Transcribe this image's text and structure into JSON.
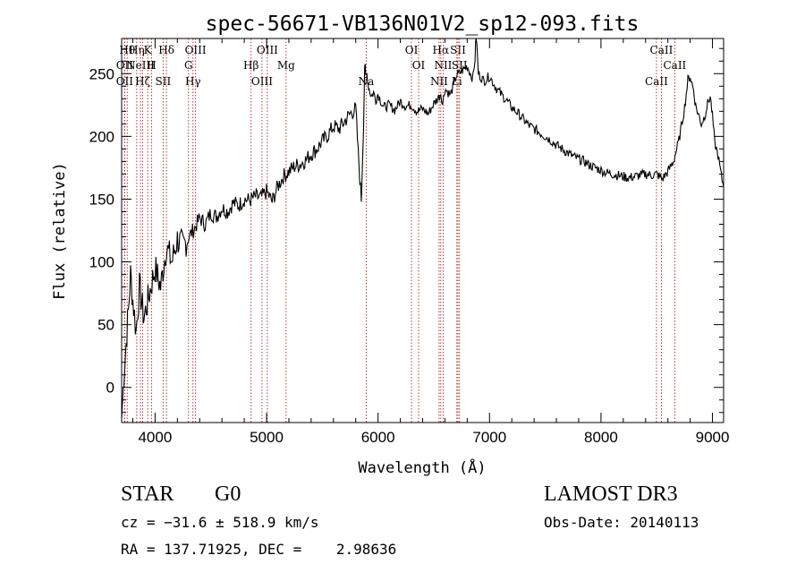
{
  "chart_data": {
    "type": "line",
    "title": "spec-56671-VB136N01V2_sp12-093.fits",
    "xlabel": "Wavelength (Å)",
    "ylabel": "Flux (relative)",
    "xlim": [
      3700,
      9100
    ],
    "ylim": [
      -28,
      278
    ],
    "xticks": [
      4000,
      5000,
      6000,
      7000,
      8000,
      9000
    ],
    "yticks": [
      0,
      50,
      100,
      150,
      200,
      250
    ],
    "series": [
      {
        "name": "flux",
        "x": [
          3700,
          3720,
          3740,
          3760,
          3780,
          3800,
          3830,
          3860,
          3900,
          3950,
          4000,
          4050,
          4100,
          4150,
          4200,
          4250,
          4300,
          4350,
          4400,
          4450,
          4500,
          4550,
          4600,
          4650,
          4700,
          4750,
          4800,
          4850,
          4900,
          4950,
          5000,
          5050,
          5100,
          5150,
          5200,
          5250,
          5300,
          5350,
          5400,
          5450,
          5500,
          5550,
          5600,
          5650,
          5700,
          5750,
          5800,
          5830,
          5850,
          5870,
          5880,
          5890,
          5900,
          5910,
          5920,
          5940,
          5960,
          5980,
          6000,
          6050,
          6100,
          6150,
          6200,
          6250,
          6300,
          6350,
          6400,
          6450,
          6500,
          6550,
          6563,
          6580,
          6600,
          6650,
          6700,
          6750,
          6800,
          6850,
          6870,
          6880,
          6900,
          6950,
          7000,
          7050,
          7100,
          7150,
          7200,
          7250,
          7300,
          7350,
          7400,
          7450,
          7500,
          7550,
          7600,
          7650,
          7700,
          7750,
          7800,
          7850,
          7900,
          7950,
          8000,
          8050,
          8100,
          8150,
          8200,
          8250,
          8300,
          8350,
          8400,
          8450,
          8500,
          8550,
          8600,
          8650,
          8700,
          8750,
          8780,
          8800,
          8830,
          8850,
          8880,
          8900,
          8930,
          8950,
          8980,
          9000,
          9020,
          9050,
          9080,
          9100
        ],
        "y": [
          -25,
          10,
          35,
          60,
          90,
          70,
          45,
          80,
          55,
          75,
          95,
          80,
          112,
          100,
          118,
          112,
          120,
          126,
          135,
          130,
          139,
          136,
          143,
          140,
          147,
          145,
          150,
          149,
          152,
          151,
          156,
          148,
          160,
          168,
          172,
          176,
          178,
          181,
          186,
          190,
          196,
          201,
          208,
          206,
          212,
          218,
          222,
          175,
          150,
          210,
          258,
          245,
          250,
          242,
          238,
          232,
          235,
          229,
          234,
          223,
          225,
          221,
          228,
          224,
          225,
          220,
          222,
          218,
          226,
          232,
          235,
          226,
          238,
          233,
          248,
          252,
          256,
          246,
          262,
          282,
          250,
          244,
          248,
          240,
          234,
          229,
          223,
          219,
          214,
          209,
          206,
          203,
          200,
          197,
          193,
          190,
          187,
          184,
          182,
          180,
          177,
          175,
          173,
          171,
          170,
          169,
          168,
          167,
          168,
          169,
          170,
          169,
          170,
          166,
          172,
          180,
          197,
          223,
          245,
          248,
          237,
          224,
          216,
          210,
          216,
          224,
          232,
          216,
          195,
          185,
          168,
          160
        ]
      }
    ],
    "lines": [
      {
        "wavelength": 3750,
        "label": "Hθ"
      },
      {
        "wavelength": 3727,
        "label": "OII"
      },
      {
        "wavelength": 3727,
        "label": "OII"
      },
      {
        "wavelength": 3835,
        "label": "Hη"
      },
      {
        "wavelength": 3869,
        "label": "NeIII"
      },
      {
        "wavelength": 3889,
        "label": "Hζ"
      },
      {
        "wavelength": 3934,
        "label": "K"
      },
      {
        "wavelength": 3969,
        "label": "H"
      },
      {
        "wavelength": 4072,
        "label": "SII"
      },
      {
        "wavelength": 4102,
        "label": "Hδ"
      },
      {
        "wavelength": 4300,
        "label": "G"
      },
      {
        "wavelength": 4340,
        "label": "Hγ"
      },
      {
        "wavelength": 4363,
        "label": "OIII"
      },
      {
        "wavelength": 4861,
        "label": "Hβ"
      },
      {
        "wavelength": 4959,
        "label": "OIII"
      },
      {
        "wavelength": 5007,
        "label": "OIII"
      },
      {
        "wavelength": 5175,
        "label": "Mg"
      },
      {
        "wavelength": 5894,
        "label": "Na"
      },
      {
        "wavelength": 6300,
        "label": "OI"
      },
      {
        "wavelength": 6364,
        "label": "OI"
      },
      {
        "wavelength": 6548,
        "label": "NII"
      },
      {
        "wavelength": 6563,
        "label": "Hα"
      },
      {
        "wavelength": 6584,
        "label": "NII"
      },
      {
        "wavelength": 6707,
        "label": "Li"
      },
      {
        "wavelength": 6717,
        "label": "SII"
      },
      {
        "wavelength": 6731,
        "label": "SII"
      },
      {
        "wavelength": 8498,
        "label": "CaII"
      },
      {
        "wavelength": 8542,
        "label": "CaII"
      },
      {
        "wavelength": 8662,
        "label": "CaII"
      }
    ],
    "line_color": "#b22222"
  },
  "info": {
    "class": "STAR",
    "subclass": "G0",
    "survey": "LAMOST DR3",
    "cz": "cz = −31.6 ± 518.9 km/s",
    "obs_date": "Obs-Date: 20140113",
    "coords": "RA = 137.71925, DEC =    2.98636"
  }
}
